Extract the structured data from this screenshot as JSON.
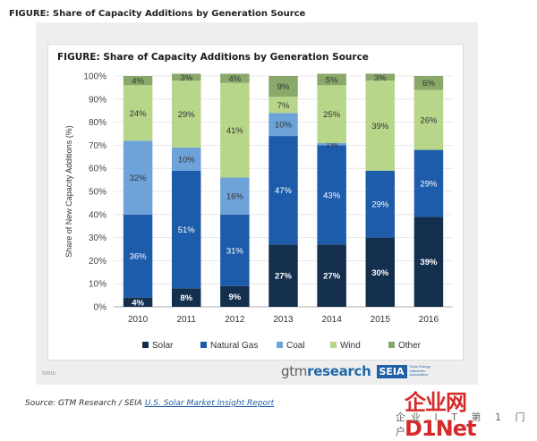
{
  "page_title": "FIGURE: Share of Capacity Additions by Generation Source",
  "copyright": "©2016",
  "brand": {
    "gtm_prefix": "gtm",
    "gtm_suffix": "research",
    "seia": "SEIA",
    "seia_sub": "Solar Energy Industries Association"
  },
  "source": {
    "prefix": "Source: GTM Research / SEIA ",
    "link_text": "U.S. Solar Market Insight Report"
  },
  "watermark": {
    "main": "企业网D1Net",
    "sub": "企业 I T 第 1 门户"
  },
  "chart_data": {
    "type": "bar",
    "stacked": true,
    "title": "FIGURE: Share of Capacity Additions by Generation Source",
    "xlabel": "",
    "ylabel": "Share of New Capacity Additions (%)",
    "ylim": [
      0,
      100
    ],
    "yticks": [
      "0%",
      "10%",
      "20%",
      "30%",
      "40%",
      "50%",
      "60%",
      "70%",
      "80%",
      "90%",
      "100%"
    ],
    "categories": [
      "2010",
      "2011",
      "2012",
      "2013",
      "2014",
      "2015",
      "2016"
    ],
    "legend_position": "bottom",
    "series": [
      {
        "name": "Solar",
        "color": "#142f4e",
        "values": [
          4,
          8,
          9,
          27,
          27,
          30,
          39
        ],
        "labels": [
          "4%",
          "8%",
          "9%",
          "27%",
          "27%",
          "30%",
          "39%"
        ]
      },
      {
        "name": "Natural Gas",
        "color": "#1d5caa",
        "values": [
          36,
          51,
          31,
          47,
          43,
          29,
          29
        ],
        "labels": [
          "36%",
          "51%",
          "31%",
          "47%",
          "43%",
          "29%",
          "29%"
        ]
      },
      {
        "name": "Coal",
        "color": "#6da3d8",
        "values": [
          32,
          10,
          16,
          10,
          1,
          0,
          0
        ],
        "labels": [
          "32%",
          "10%",
          "16%",
          "10%",
          "1%",
          "",
          ""
        ]
      },
      {
        "name": "Wind",
        "color": "#b7d68a",
        "values": [
          24,
          29,
          41,
          7,
          25,
          39,
          26
        ],
        "labels": [
          "24%",
          "29%",
          "41%",
          "7%",
          "25%",
          "39%",
          "26%"
        ]
      },
      {
        "name": "Other",
        "color": "#8aa86a",
        "values": [
          4,
          3,
          4,
          9,
          5,
          3,
          6
        ],
        "labels": [
          "4%",
          "3%",
          "4%",
          "9%",
          "5%",
          "3%",
          "6%"
        ]
      }
    ]
  }
}
